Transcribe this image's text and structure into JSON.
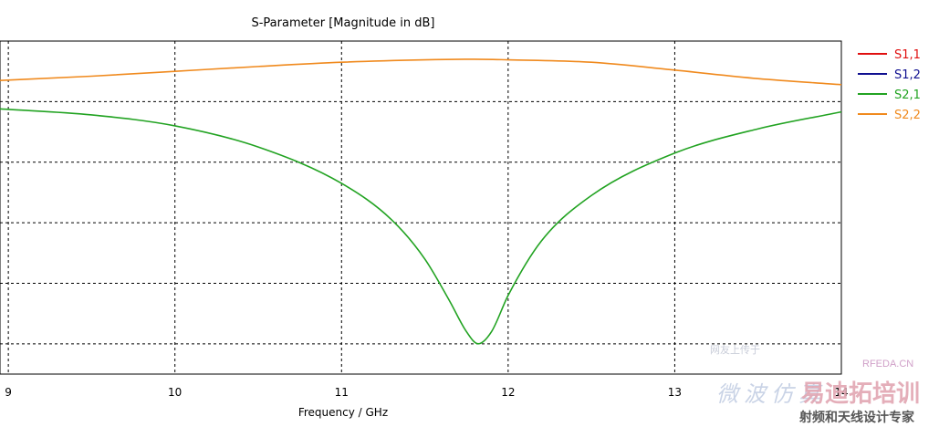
{
  "chart_data": {
    "type": "line",
    "title": "S-Parameter [Magnitude in dB]",
    "xlabel": "Frequency / GHz",
    "ylabel": "",
    "xlim": [
      8.95,
      14.0
    ],
    "ylim": [
      -45,
      10
    ],
    "x_ticks": [
      9,
      10,
      11,
      12,
      13,
      14
    ],
    "x_tick_labels": [
      "9",
      "10",
      "11",
      "12",
      "13",
      "14"
    ],
    "y_gridlines": [
      0,
      -10,
      -20,
      -30,
      -40
    ],
    "grid": true,
    "legend_position": "right",
    "series": [
      {
        "name": "S1,1",
        "color": "#e01010",
        "x": [],
        "y": []
      },
      {
        "name": "S1,2",
        "color": "#101090",
        "x": [],
        "y": []
      },
      {
        "name": "S2,1",
        "color": "#22a322",
        "x": [
          8.95,
          9.5,
          10.0,
          10.5,
          11.0,
          11.3,
          11.5,
          11.65,
          11.75,
          11.82,
          11.9,
          12.0,
          12.2,
          12.5,
          13.0,
          13.5,
          14.0
        ],
        "y": [
          -1.2,
          -2.2,
          -4.0,
          -7.5,
          -13.5,
          -19.5,
          -26.0,
          -33.0,
          -38.0,
          -40.0,
          -38.0,
          -32.0,
          -23.0,
          -15.5,
          -8.5,
          -4.5,
          -1.7
        ]
      },
      {
        "name": "S2,2",
        "color": "#f08a1e",
        "x": [
          8.95,
          9.5,
          10.0,
          10.5,
          11.0,
          11.5,
          11.8,
          12.0,
          12.5,
          13.0,
          13.5,
          14.0
        ],
        "y": [
          3.5,
          4.2,
          5.0,
          5.8,
          6.5,
          6.9,
          7.0,
          6.9,
          6.5,
          5.2,
          3.8,
          2.8
        ]
      }
    ]
  },
  "watermark": {
    "site": "RFEDA.CN",
    "faded_caption": "网友上传于",
    "faded_brand": "微波仿真",
    "brand": "易迪拓培训",
    "slogan": "射频和天线设计专家"
  }
}
